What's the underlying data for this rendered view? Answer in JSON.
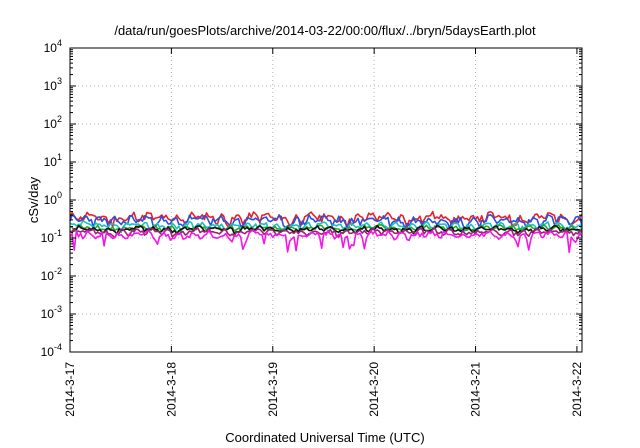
{
  "chart_data": {
    "type": "line",
    "title": "/data/run/goesPlots/archive/2014-03-22/00:00/flux/../bryn/5daysEarth.plot",
    "xlabel": "Coordinated Universal Time (UTC)",
    "ylabel": "cSv/day",
    "yscale": "log",
    "ylim": [
      0.0001,
      10000
    ],
    "xlim": [
      0,
      5.05
    ],
    "y_ticks": [
      {
        "base": "10",
        "exp": "-4",
        "value": 0.0001
      },
      {
        "base": "10",
        "exp": "-3",
        "value": 0.001
      },
      {
        "base": "10",
        "exp": "-2",
        "value": 0.01
      },
      {
        "base": "10",
        "exp": "-1",
        "value": 0.1
      },
      {
        "base": "10",
        "exp": "0",
        "value": 1
      },
      {
        "base": "10",
        "exp": "1",
        "value": 10
      },
      {
        "base": "10",
        "exp": "2",
        "value": 100
      },
      {
        "base": "10",
        "exp": "3",
        "value": 1000
      },
      {
        "base": "10",
        "exp": "4",
        "value": 10000
      }
    ],
    "x_ticks": [
      {
        "label": "2014-3-17",
        "value": 0
      },
      {
        "label": "2014-3-18",
        "value": 1
      },
      {
        "label": "2014-3-19",
        "value": 2
      },
      {
        "label": "2014-3-20",
        "value": 3
      },
      {
        "label": "2014-3-21",
        "value": 4
      },
      {
        "label": "2014-3-22",
        "value": 5
      }
    ],
    "grid": true,
    "series": [
      {
        "color": "#e8202a",
        "base": 0.34,
        "amp": 0.12,
        "seed": 11
      },
      {
        "color": "#2a4fe0",
        "base": 0.29,
        "amp": 0.1,
        "seed": 23
      },
      {
        "color": "#19c2c2",
        "base": 0.21,
        "amp": 0.05,
        "seed": 37
      },
      {
        "color": "#2aa62a",
        "base": 0.18,
        "amp": 0.035,
        "seed": 41
      },
      {
        "color": "#111111",
        "base": 0.17,
        "amp": 0.03,
        "seed": 53
      },
      {
        "color": "#a0207a",
        "base": 0.145,
        "amp": 0.03,
        "seed": 67
      },
      {
        "color": "#f218e6",
        "base": 0.12,
        "amp": 0.03,
        "seed": 79,
        "dips": true
      }
    ]
  }
}
